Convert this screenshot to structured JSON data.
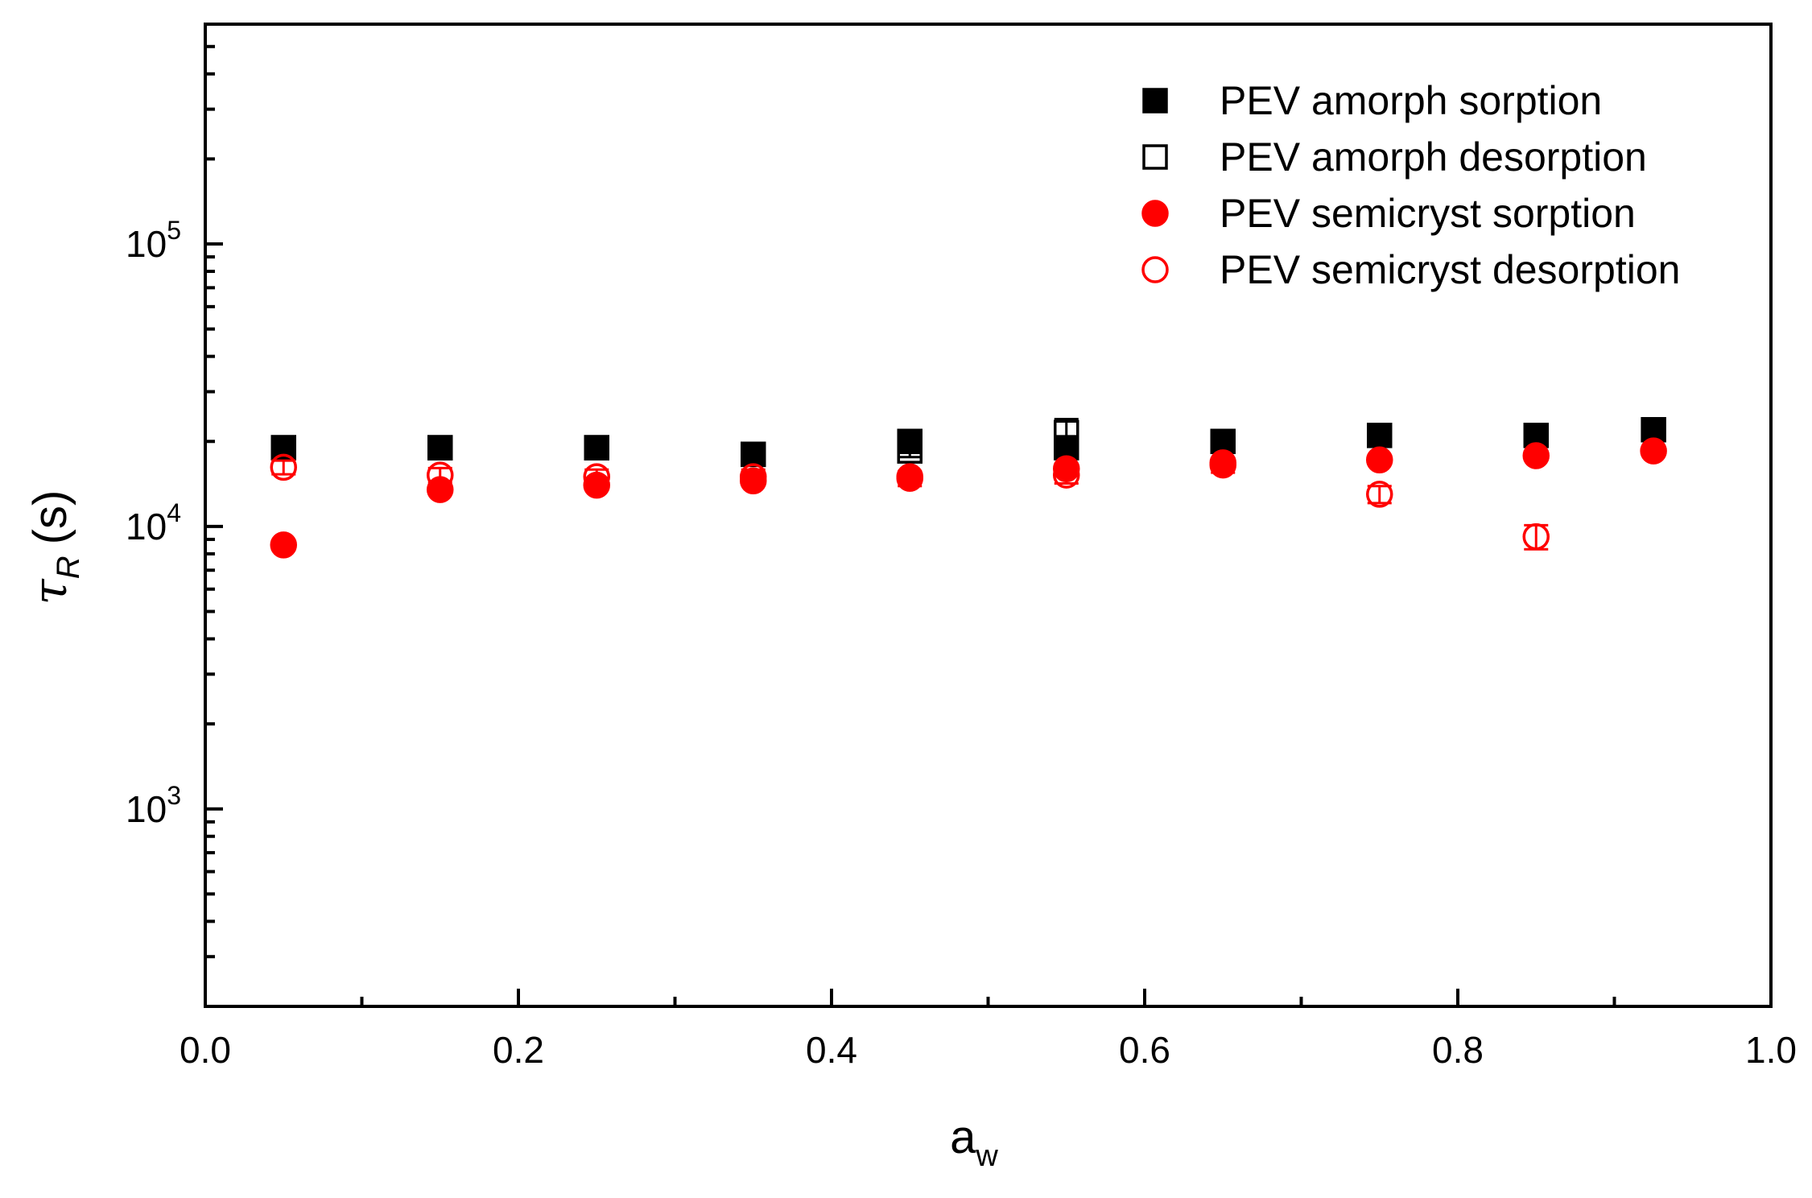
{
  "chart_data": {
    "type": "scatter",
    "title": "",
    "xlabel": {
      "main": "a",
      "sub": "w"
    },
    "ylabel": {
      "main": "τ",
      "sub": "R",
      "unit": "(s)"
    },
    "xlim": [
      0.0,
      1.0
    ],
    "ylim": [
      200,
      600000
    ],
    "yscale": "log",
    "x_ticks": [
      "0.0",
      "0.2",
      "0.4",
      "0.6",
      "0.8",
      "1.0"
    ],
    "y_ticks": [
      {
        "base": "10",
        "exp": "3",
        "value": 1000
      },
      {
        "base": "10",
        "exp": "4",
        "value": 10000
      },
      {
        "base": "10",
        "exp": "5",
        "value": 100000
      }
    ],
    "legend_position": "top-right",
    "series": [
      {
        "name": "PEV amorph sorption",
        "marker": "square-filled",
        "color": "#000000",
        "points": [
          {
            "x": 0.05,
            "y": 19000,
            "err": 600
          },
          {
            "x": 0.15,
            "y": 19000,
            "err": 600
          },
          {
            "x": 0.25,
            "y": 19000,
            "err": 600
          },
          {
            "x": 0.35,
            "y": 18000,
            "err": 600
          },
          {
            "x": 0.45,
            "y": 20000,
            "err": 600
          },
          {
            "x": 0.55,
            "y": 19000,
            "err": 600
          },
          {
            "x": 0.65,
            "y": 20000,
            "err": 600
          },
          {
            "x": 0.75,
            "y": 21000,
            "err": 600
          },
          {
            "x": 0.85,
            "y": 21000,
            "err": 600
          },
          {
            "x": 0.925,
            "y": 22000,
            "err": 600
          }
        ]
      },
      {
        "name": "PEV amorph desorption",
        "marker": "square-open",
        "color": "#000000",
        "points": [
          {
            "x": 0.05,
            "y": 19000,
            "err": 900
          },
          {
            "x": 0.15,
            "y": 19000,
            "err": 900
          },
          {
            "x": 0.25,
            "y": 19000,
            "err": 900
          },
          {
            "x": 0.35,
            "y": 18000,
            "err": 900
          },
          {
            "x": 0.45,
            "y": 18500,
            "err": 900
          },
          {
            "x": 0.55,
            "y": 21500,
            "err": 2500
          }
        ]
      },
      {
        "name": "PEV semicryst sorption",
        "marker": "circle-filled",
        "color": "#ff0000",
        "points": [
          {
            "x": 0.05,
            "y": 8600,
            "err": 300
          },
          {
            "x": 0.15,
            "y": 13500,
            "err": 400
          },
          {
            "x": 0.25,
            "y": 14000,
            "err": 400
          },
          {
            "x": 0.35,
            "y": 14500,
            "err": 400
          },
          {
            "x": 0.45,
            "y": 15000,
            "err": 400
          },
          {
            "x": 0.55,
            "y": 16000,
            "err": 500
          },
          {
            "x": 0.65,
            "y": 16800,
            "err": 500
          },
          {
            "x": 0.75,
            "y": 17200,
            "err": 500
          },
          {
            "x": 0.85,
            "y": 17800,
            "err": 500
          },
          {
            "x": 0.925,
            "y": 18500,
            "err": 500
          }
        ]
      },
      {
        "name": "PEV semicryst desorption",
        "marker": "circle-open",
        "color": "#ff0000",
        "points": [
          {
            "x": 0.05,
            "y": 16200,
            "err": 900
          },
          {
            "x": 0.15,
            "y": 15200,
            "err": 900
          },
          {
            "x": 0.25,
            "y": 15000,
            "err": 900
          },
          {
            "x": 0.35,
            "y": 15000,
            "err": 900
          },
          {
            "x": 0.45,
            "y": 14800,
            "err": 900
          },
          {
            "x": 0.55,
            "y": 15200,
            "err": 1000
          },
          {
            "x": 0.65,
            "y": 16500,
            "err": 1000
          },
          {
            "x": 0.75,
            "y": 13000,
            "err": 900
          },
          {
            "x": 0.85,
            "y": 9200,
            "err": 900
          }
        ]
      }
    ]
  }
}
